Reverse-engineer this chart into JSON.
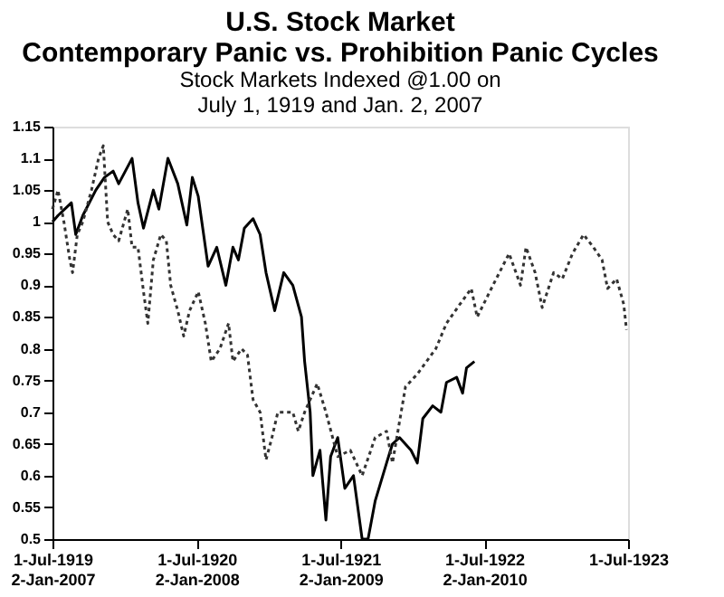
{
  "chart_data": {
    "type": "line",
    "title": "U.S. Stock Market\nContemporary Panic vs. Prohibition Panic Cycles",
    "subtitle": "Stock Markets Indexed @1.00 on\nJuly 1, 1919 and Jan. 2, 2007",
    "xlim": [
      "1919-07-01",
      "1923-07-01"
    ],
    "xticks": [
      {
        "value": "1919-07-01",
        "label": "1-Jul-1919\n2-Jan-2007"
      },
      {
        "value": "1920-07-01",
        "label": "1-Jul-1920\n2-Jan-2008"
      },
      {
        "value": "1921-07-01",
        "label": "1-Jul-1921\n2-Jan-2009"
      },
      {
        "value": "1922-07-01",
        "label": "1-Jul-1922\n2-Jan-2010"
      },
      {
        "value": "1923-07-01",
        "label": "1-Jul-1923"
      }
    ],
    "ylim": [
      0.5,
      1.15
    ],
    "yticks": [
      0.5,
      0.55,
      0.6,
      0.65,
      0.7,
      0.75,
      0.8,
      0.85,
      0.9,
      0.95,
      1,
      1.05,
      1.1,
      1.15
    ],
    "grid": false,
    "legend": false,
    "series": [
      {
        "color": "#000000",
        "line_style": "solid",
        "x": [
          "1919-07-01",
          "1919-07-15",
          "1919-08-18",
          "1919-08-29",
          "1919-09-16",
          "1919-10-19",
          "1919-11-10",
          "1919-12-02",
          "1919-12-16",
          "1920-01-19",
          "1920-02-03",
          "1920-02-17",
          "1920-03-13",
          "1920-03-27",
          "1920-04-19",
          "1920-05-14",
          "1920-06-06",
          "1920-06-20",
          "1920-07-05",
          "1920-07-30",
          "1920-08-21",
          "1920-09-13",
          "1920-10-01",
          "1920-10-15",
          "1920-10-30",
          "1920-11-21",
          "1920-12-09",
          "1920-12-24",
          "1921-01-15",
          "1921-02-07",
          "1921-03-02",
          "1921-03-24",
          "1921-04-01",
          "1921-04-15",
          "1921-04-22",
          "1921-05-10",
          "1921-05-25",
          "1921-06-06",
          "1921-06-24",
          "1921-07-12",
          "1921-08-03",
          "1921-08-25",
          "1921-09-09",
          "1921-09-27",
          "1921-10-26",
          "1921-11-10",
          "1921-11-28",
          "1921-12-27",
          "1922-01-12",
          "1922-01-26",
          "1922-02-20",
          "1922-03-13",
          "1922-03-27",
          "1922-04-22",
          "1922-05-07",
          "1922-05-17",
          "1922-06-06"
        ],
        "values": [
          1.0,
          1.01,
          1.03,
          0.98,
          1.01,
          1.05,
          1.07,
          1.08,
          1.06,
          1.1,
          1.03,
          0.99,
          1.05,
          1.02,
          1.1,
          1.06,
          0.995,
          1.07,
          1.04,
          0.93,
          0.96,
          0.9,
          0.96,
          0.94,
          0.99,
          1.005,
          0.98,
          0.92,
          0.86,
          0.92,
          0.9,
          0.85,
          0.78,
          0.7,
          0.6,
          0.64,
          0.53,
          0.63,
          0.66,
          0.58,
          0.6,
          0.5,
          0.5,
          0.56,
          0.62,
          0.65,
          0.66,
          0.64,
          0.62,
          0.69,
          0.71,
          0.7,
          0.747,
          0.755,
          0.73,
          0.77,
          0.78
        ]
      },
      {
        "color": "#333333",
        "line_style": "dotted",
        "x": [
          "1919-07-01",
          "1919-07-15",
          "1919-07-30",
          "1919-08-14",
          "1919-08-21",
          "1919-09-02",
          "1919-09-16",
          "1919-10-08",
          "1919-10-26",
          "1919-11-07",
          "1919-11-18",
          "1919-12-02",
          "1919-12-16",
          "1920-01-08",
          "1920-01-19",
          "1920-02-03",
          "1920-02-17",
          "1920-02-28",
          "1920-03-13",
          "1920-04-01",
          "1920-04-15",
          "1920-04-26",
          "1920-05-14",
          "1920-05-29",
          "1920-06-13",
          "1920-07-05",
          "1920-07-23",
          "1920-08-07",
          "1920-08-29",
          "1920-09-20",
          "1920-10-01",
          "1920-10-23",
          "1920-11-07",
          "1920-11-21",
          "1920-12-09",
          "1920-12-24",
          "1921-01-08",
          "1921-01-23",
          "1921-02-07",
          "1921-03-02",
          "1921-03-16",
          "1921-04-01",
          "1921-05-03",
          "1921-05-25",
          "1921-06-24",
          "1921-07-26",
          "1921-08-25",
          "1921-09-27",
          "1921-10-26",
          "1921-11-10",
          "1921-12-13",
          "1922-01-12",
          "1922-02-28",
          "1922-03-27",
          "1922-04-30",
          "1922-05-29",
          "1922-06-13",
          "1922-07-23",
          "1922-09-02",
          "1922-10-01",
          "1922-10-15",
          "1922-11-07",
          "1922-11-25",
          "1922-12-24",
          "1923-01-15",
          "1923-02-10",
          "1923-03-10",
          "1923-04-04",
          "1923-04-26",
          "1923-05-10",
          "1923-06-02",
          "1923-06-20",
          "1923-06-27"
        ],
        "values": [
          1.02,
          1.05,
          1.0,
          0.94,
          0.92,
          0.98,
          1.0,
          1.05,
          1.1,
          1.12,
          1.0,
          0.98,
          0.97,
          1.02,
          0.96,
          0.96,
          0.89,
          0.84,
          0.94,
          0.98,
          0.97,
          0.9,
          0.86,
          0.82,
          0.86,
          0.89,
          0.84,
          0.78,
          0.8,
          0.84,
          0.78,
          0.8,
          0.79,
          0.72,
          0.7,
          0.625,
          0.66,
          0.7,
          0.7,
          0.7,
          0.67,
          0.7,
          0.745,
          0.7,
          0.63,
          0.64,
          0.6,
          0.66,
          0.67,
          0.62,
          0.74,
          0.76,
          0.8,
          0.84,
          0.87,
          0.895,
          0.85,
          0.9,
          0.95,
          0.9,
          0.96,
          0.92,
          0.865,
          0.92,
          0.91,
          0.95,
          0.98,
          0.96,
          0.94,
          0.895,
          0.91,
          0.87,
          0.83
        ]
      }
    ]
  }
}
